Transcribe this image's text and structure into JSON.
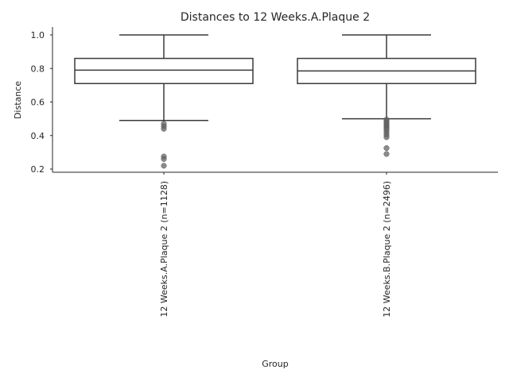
{
  "chart_data": {
    "type": "box",
    "title": "Distances to 12 Weeks.A.Plaque 2",
    "xlabel": "Group",
    "ylabel": "Distance",
    "ylim": [
      0.18,
      1.04
    ],
    "yticks": [
      0.2,
      0.4,
      0.6,
      0.8,
      1.0
    ],
    "ytick_labels": [
      "0.2",
      "0.4",
      "0.6",
      "0.8",
      "1.0"
    ],
    "grid": false,
    "categories": [
      "12 Weeks.A.Plaque 2 (n=1128)",
      "12 Weeks.B.Plaque 2 (n=2496)"
    ],
    "boxes": [
      {
        "label": "12 Weeks.A.Plaque 2 (n=1128)",
        "whisker_low": 0.49,
        "q1": 0.71,
        "median": 0.79,
        "q3": 0.86,
        "whisker_high": 1.0,
        "outliers": [
          0.47,
          0.455,
          0.44,
          0.275,
          0.26,
          0.22
        ]
      },
      {
        "label": "12 Weeks.B.Plaque 2 (n=2496)",
        "whisker_low": 0.5,
        "q1": 0.71,
        "median": 0.785,
        "q3": 0.86,
        "whisker_high": 1.0,
        "outliers": [
          0.495,
          0.485,
          0.475,
          0.465,
          0.455,
          0.445,
          0.435,
          0.42,
          0.405,
          0.39,
          0.325,
          0.29
        ]
      }
    ]
  }
}
